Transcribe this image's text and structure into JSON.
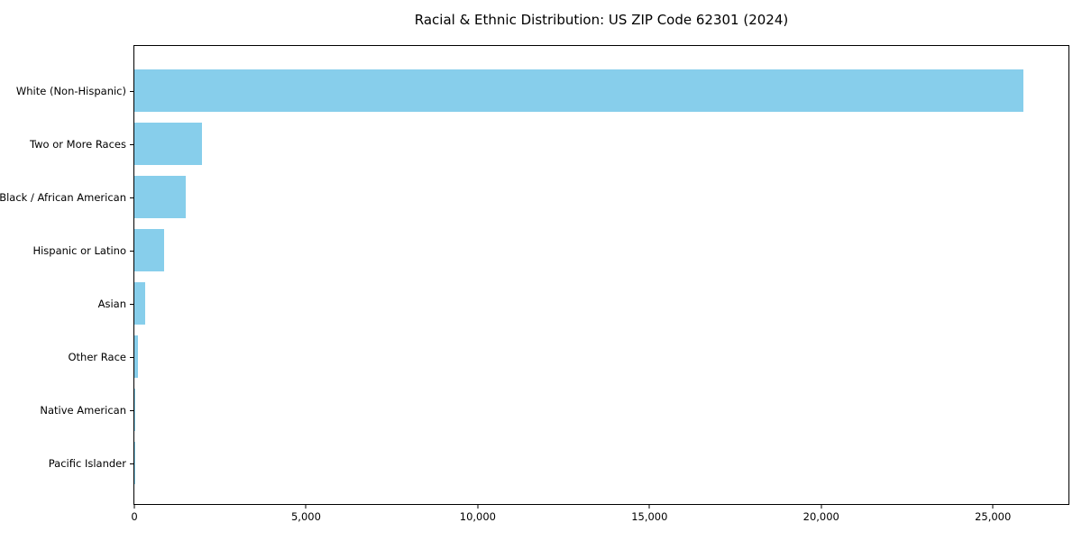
{
  "chart_data": {
    "type": "bar",
    "orientation": "horizontal",
    "title": "Racial & Ethnic Distribution: US ZIP Code 62301 (2024)",
    "categories": [
      "White (Non-Hispanic)",
      "Two or More Races",
      "Black / African American",
      "Hispanic or Latino",
      "Asian",
      "Other Race",
      "Native American",
      "Pacific Islander"
    ],
    "values": [
      25900,
      1960,
      1500,
      870,
      325,
      100,
      25,
      4
    ],
    "xlabel": "",
    "ylabel": "",
    "xlim": [
      0,
      27200
    ],
    "xticks": [
      0,
      5000,
      10000,
      15000,
      20000,
      25000
    ],
    "xtick_labels": [
      "0",
      "5,000",
      "10,000",
      "15,000",
      "20,000",
      "25,000"
    ],
    "bar_color": "#87CEEB",
    "axis_color": "#000000",
    "background_color": "#FFFFFF",
    "grid": false,
    "legend": "none"
  }
}
